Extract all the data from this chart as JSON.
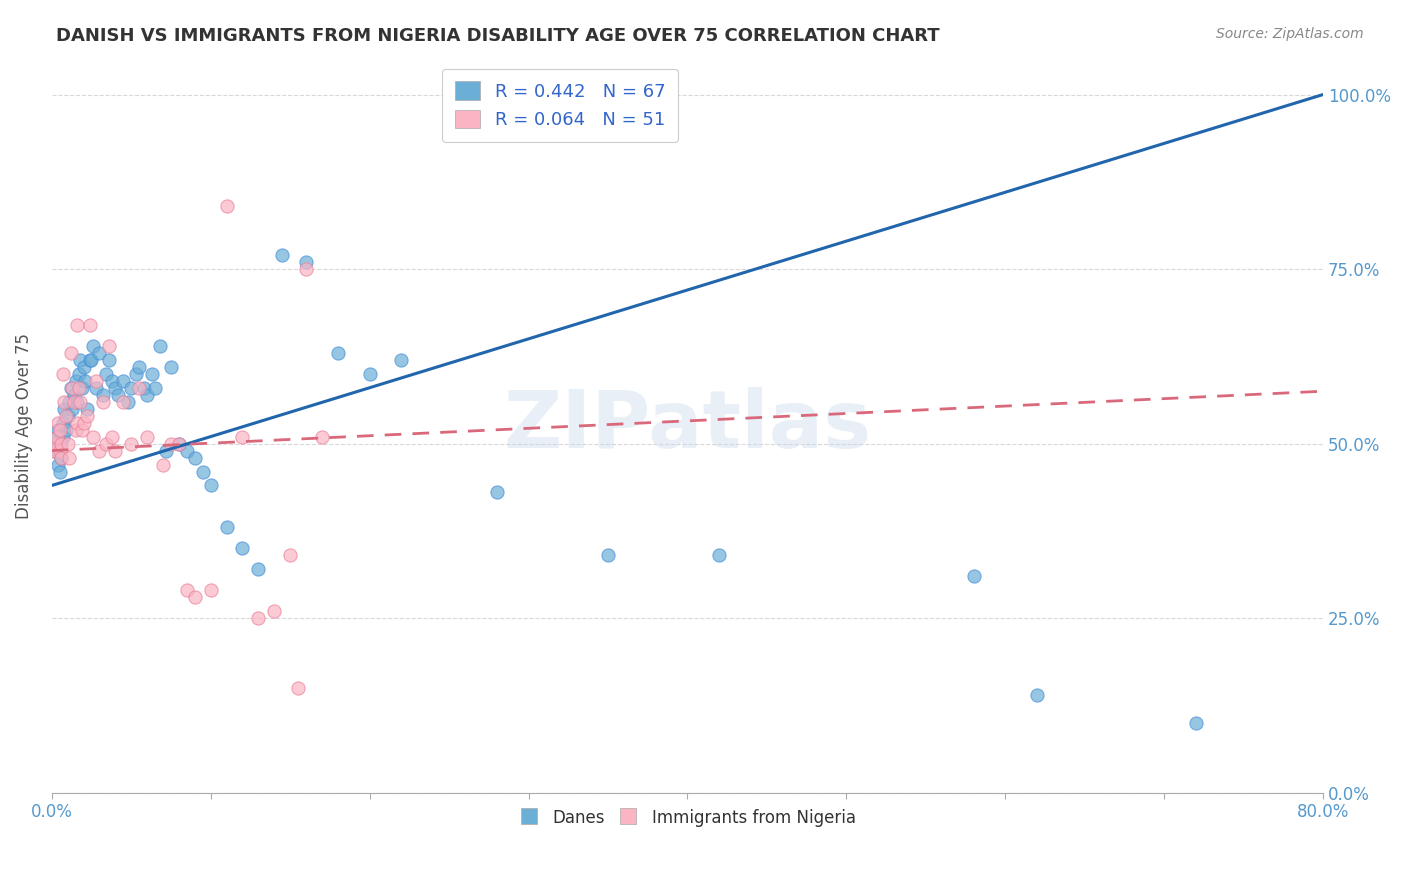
{
  "title": "DANISH VS IMMIGRANTS FROM NIGERIA DISABILITY AGE OVER 75 CORRELATION CHART",
  "source": "Source: ZipAtlas.com",
  "ylabel": "Disability Age Over 75",
  "legend_danes": "Danes",
  "legend_nigeria": "Immigrants from Nigeria",
  "legend_r_danes": "R = 0.442",
  "legend_n_danes": "N = 67",
  "legend_r_nigeria": "R = 0.064",
  "legend_n_nigeria": "N = 51",
  "danes_color": "#6baed6",
  "nigeria_color": "#fbb4c4",
  "danes_line_color": "#2166ac",
  "nigeria_line_color": "#d9687a",
  "watermark": "ZIPatlas",
  "danes_x": [
    0.001,
    0.002,
    0.003,
    0.004,
    0.004,
    0.005,
    0.005,
    0.006,
    0.007,
    0.007,
    0.008,
    0.009,
    0.01,
    0.011,
    0.012,
    0.013,
    0.014,
    0.015,
    0.016,
    0.017,
    0.018,
    0.019,
    0.02,
    0.021,
    0.022,
    0.024,
    0.025,
    0.026,
    0.028,
    0.03,
    0.032,
    0.034,
    0.036,
    0.038,
    0.04,
    0.042,
    0.045,
    0.048,
    0.05,
    0.053,
    0.055,
    0.058,
    0.06,
    0.063,
    0.065,
    0.068,
    0.072,
    0.075,
    0.08,
    0.085,
    0.09,
    0.095,
    0.1,
    0.11,
    0.12,
    0.13,
    0.145,
    0.16,
    0.18,
    0.2,
    0.22,
    0.28,
    0.35,
    0.42,
    0.58,
    0.62,
    0.72
  ],
  "danes_y": [
    0.5,
    0.49,
    0.51,
    0.52,
    0.47,
    0.46,
    0.5,
    0.48,
    0.51,
    0.53,
    0.55,
    0.52,
    0.54,
    0.56,
    0.58,
    0.55,
    0.57,
    0.59,
    0.56,
    0.6,
    0.62,
    0.58,
    0.61,
    0.59,
    0.55,
    0.62,
    0.62,
    0.64,
    0.58,
    0.63,
    0.57,
    0.6,
    0.62,
    0.59,
    0.58,
    0.57,
    0.59,
    0.56,
    0.58,
    0.6,
    0.61,
    0.58,
    0.57,
    0.6,
    0.58,
    0.64,
    0.49,
    0.61,
    0.5,
    0.49,
    0.48,
    0.46,
    0.44,
    0.38,
    0.35,
    0.32,
    0.77,
    0.76,
    0.63,
    0.6,
    0.62,
    0.43,
    0.34,
    0.34,
    0.31,
    0.14,
    0.1
  ],
  "nigeria_x": [
    0.001,
    0.002,
    0.003,
    0.004,
    0.005,
    0.005,
    0.006,
    0.006,
    0.007,
    0.008,
    0.009,
    0.01,
    0.011,
    0.012,
    0.013,
    0.014,
    0.015,
    0.016,
    0.016,
    0.017,
    0.018,
    0.019,
    0.02,
    0.022,
    0.024,
    0.026,
    0.028,
    0.03,
    0.032,
    0.034,
    0.036,
    0.038,
    0.04,
    0.045,
    0.05,
    0.055,
    0.06,
    0.07,
    0.075,
    0.08,
    0.085,
    0.09,
    0.1,
    0.11,
    0.12,
    0.13,
    0.14,
    0.15,
    0.155,
    0.16,
    0.17
  ],
  "nigeria_y": [
    0.49,
    0.5,
    0.51,
    0.53,
    0.52,
    0.49,
    0.5,
    0.48,
    0.6,
    0.56,
    0.54,
    0.5,
    0.48,
    0.63,
    0.58,
    0.56,
    0.52,
    0.53,
    0.67,
    0.58,
    0.56,
    0.52,
    0.53,
    0.54,
    0.67,
    0.51,
    0.59,
    0.49,
    0.56,
    0.5,
    0.64,
    0.51,
    0.49,
    0.56,
    0.5,
    0.58,
    0.51,
    0.47,
    0.5,
    0.5,
    0.29,
    0.28,
    0.29,
    0.84,
    0.51,
    0.25,
    0.26,
    0.34,
    0.15,
    0.75,
    0.51
  ],
  "xlim": [
    0.0,
    0.8
  ],
  "ylim": [
    0.0,
    1.05
  ],
  "danes_trendline": [
    0.0,
    0.8
  ],
  "danes_trendline_y": [
    0.44,
    1.0
  ],
  "nigeria_trendline": [
    0.0,
    0.8
  ],
  "nigeria_trendline_y": [
    0.49,
    0.575
  ],
  "background_color": "#ffffff",
  "grid_color": "#d8d8d8"
}
